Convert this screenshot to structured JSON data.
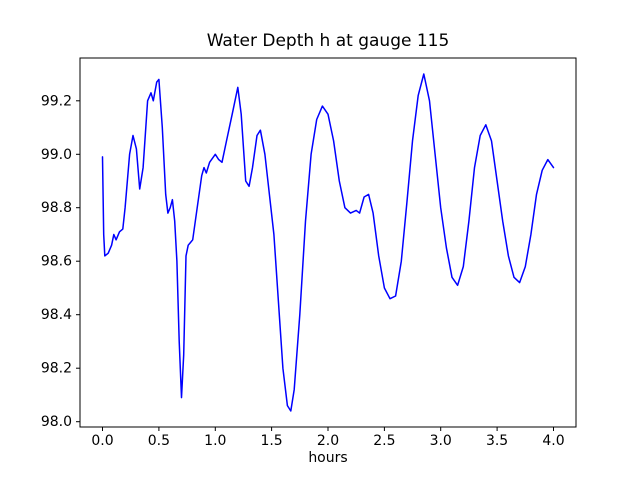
{
  "figure": {
    "background": "#ffffff"
  },
  "chart_data": {
    "type": "line",
    "title": "Water Depth h at gauge 115",
    "xlabel": "hours",
    "ylabel": "",
    "legend": null,
    "grid": false,
    "line_color": "#0000ff",
    "axis_color": "#000000",
    "xlim": [
      -0.2,
      4.2
    ],
    "ylim": [
      97.98,
      99.36
    ],
    "xticks": [
      0.0,
      0.5,
      1.0,
      1.5,
      2.0,
      2.5,
      3.0,
      3.5,
      4.0
    ],
    "xtick_labels": [
      "0.0",
      "0.5",
      "1.0",
      "1.5",
      "2.0",
      "2.5",
      "3.0",
      "3.5",
      "4.0"
    ],
    "yticks": [
      98.0,
      98.2,
      98.4,
      98.6,
      98.8,
      99.0,
      99.2
    ],
    "ytick_labels": [
      "98.0",
      "98.2",
      "98.4",
      "98.6",
      "98.8",
      "99.0",
      "99.2"
    ],
    "x": [
      0.0,
      0.01,
      0.02,
      0.05,
      0.08,
      0.1,
      0.12,
      0.15,
      0.18,
      0.2,
      0.24,
      0.27,
      0.3,
      0.33,
      0.36,
      0.4,
      0.43,
      0.45,
      0.48,
      0.5,
      0.53,
      0.56,
      0.58,
      0.6,
      0.62,
      0.64,
      0.66,
      0.68,
      0.7,
      0.72,
      0.74,
      0.76,
      0.78,
      0.8,
      0.84,
      0.88,
      0.9,
      0.92,
      0.95,
      1.0,
      1.03,
      1.06,
      1.1,
      1.15,
      1.2,
      1.23,
      1.27,
      1.3,
      1.33,
      1.37,
      1.4,
      1.44,
      1.48,
      1.52,
      1.56,
      1.6,
      1.64,
      1.67,
      1.7,
      1.75,
      1.8,
      1.85,
      1.9,
      1.95,
      2.0,
      2.05,
      2.1,
      2.15,
      2.2,
      2.25,
      2.28,
      2.32,
      2.36,
      2.4,
      2.45,
      2.5,
      2.55,
      2.6,
      2.65,
      2.7,
      2.75,
      2.8,
      2.85,
      2.9,
      2.95,
      3.0,
      3.05,
      3.1,
      3.15,
      3.2,
      3.25,
      3.3,
      3.35,
      3.4,
      3.45,
      3.5,
      3.55,
      3.6,
      3.65,
      3.7,
      3.75,
      3.8,
      3.85,
      3.9,
      3.95,
      4.0
    ],
    "y": [
      98.99,
      98.7,
      98.62,
      98.63,
      98.66,
      98.7,
      98.68,
      98.71,
      98.72,
      98.8,
      99.0,
      99.07,
      99.02,
      98.87,
      98.95,
      99.2,
      99.23,
      99.2,
      99.27,
      99.28,
      99.1,
      98.85,
      98.78,
      98.8,
      98.83,
      98.75,
      98.6,
      98.3,
      98.09,
      98.25,
      98.62,
      98.66,
      98.67,
      98.68,
      98.8,
      98.92,
      98.95,
      98.93,
      98.97,
      99.0,
      98.98,
      98.97,
      99.05,
      99.15,
      99.25,
      99.15,
      98.9,
      98.88,
      98.95,
      99.07,
      99.09,
      99.0,
      98.85,
      98.7,
      98.45,
      98.2,
      98.06,
      98.04,
      98.12,
      98.4,
      98.75,
      99.0,
      99.13,
      99.18,
      99.15,
      99.05,
      98.9,
      98.8,
      98.78,
      98.79,
      98.78,
      98.84,
      98.85,
      98.78,
      98.62,
      98.5,
      98.46,
      98.47,
      98.6,
      98.82,
      99.05,
      99.22,
      99.3,
      99.2,
      99.0,
      98.8,
      98.65,
      98.54,
      98.51,
      98.58,
      98.75,
      98.95,
      99.07,
      99.11,
      99.05,
      98.9,
      98.75,
      98.62,
      98.54,
      98.52,
      98.58,
      98.7,
      98.85,
      98.94,
      98.98,
      98.95
    ]
  }
}
